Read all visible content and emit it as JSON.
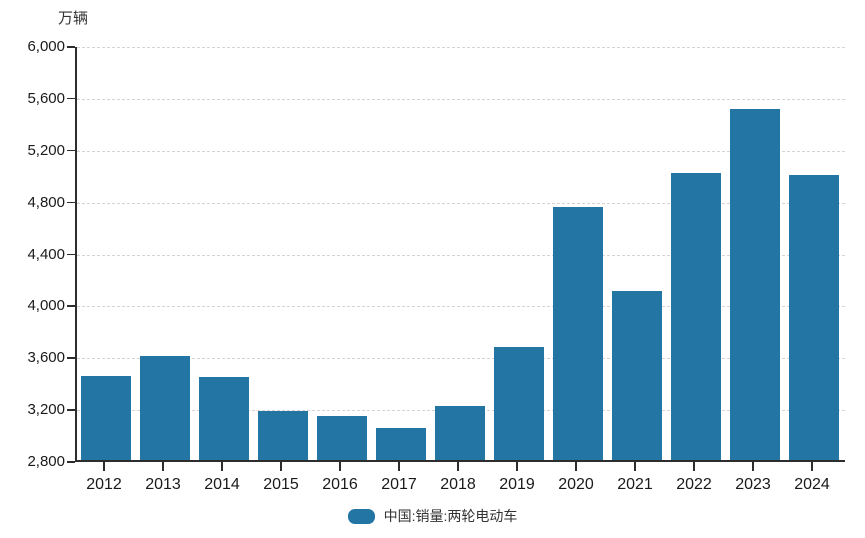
{
  "colors": {
    "bar": "#2375a3",
    "axis": "#2d2d2d",
    "gridline": "#d4d4d4",
    "text": "#1a1a1a"
  },
  "legend": {
    "label": "中国:销量:两轮电动车"
  },
  "chart_data": {
    "type": "bar",
    "title": "",
    "ylabel": "万辆",
    "xlabel": "",
    "categories": [
      "2012",
      "2013",
      "2014",
      "2015",
      "2016",
      "2017",
      "2018",
      "2019",
      "2020",
      "2021",
      "2022",
      "2023",
      "2024"
    ],
    "series": [
      {
        "name": "中国:销量:两轮电动车",
        "values": [
          3450,
          3600,
          3440,
          3180,
          3140,
          3050,
          3220,
          3670,
          4750,
          4100,
          5010,
          5510,
          5000
        ]
      }
    ],
    "ylim": [
      2800,
      6000
    ],
    "yticks": [
      2800,
      3200,
      3600,
      4000,
      4400,
      4800,
      5200,
      5600,
      6000
    ],
    "ytick_labels": [
      "2,800",
      "3,200",
      "3,600",
      "4,000",
      "4,400",
      "4,800",
      "5,200",
      "5,600",
      "6,000"
    ],
    "grid": "horizontal-dashed",
    "legend_position": "bottom-center"
  }
}
